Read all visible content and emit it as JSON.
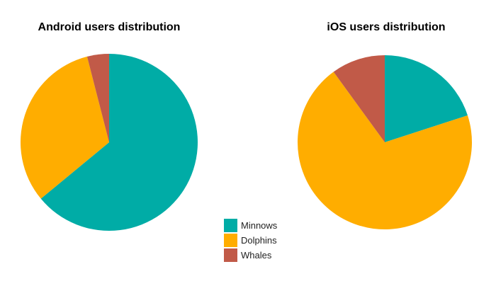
{
  "chart_data": [
    {
      "type": "pie",
      "title": "Android users distribution",
      "categories": [
        "Minnows",
        "Dolphins",
        "Whales"
      ],
      "values": [
        64,
        32,
        4
      ],
      "start": "12 o'clock",
      "direction": "clockwise"
    },
    {
      "type": "pie",
      "title": "iOS users distribution",
      "categories": [
        "Minnows",
        "Dolphins",
        "Whales"
      ],
      "values": [
        20,
        70,
        10
      ],
      "start": "12 o'clock",
      "direction": "clockwise"
    }
  ],
  "legend": {
    "placement": "bottom-center",
    "items": [
      {
        "label": "Minnows",
        "color": "#00ACA6"
      },
      {
        "label": "Dolphins",
        "color": "#FFAD00"
      },
      {
        "label": "Whales",
        "color": "#C15A48"
      }
    ]
  },
  "colors": {
    "minnows": "#00ACA6",
    "dolphins": "#FFAD00",
    "whales": "#C15A48"
  }
}
